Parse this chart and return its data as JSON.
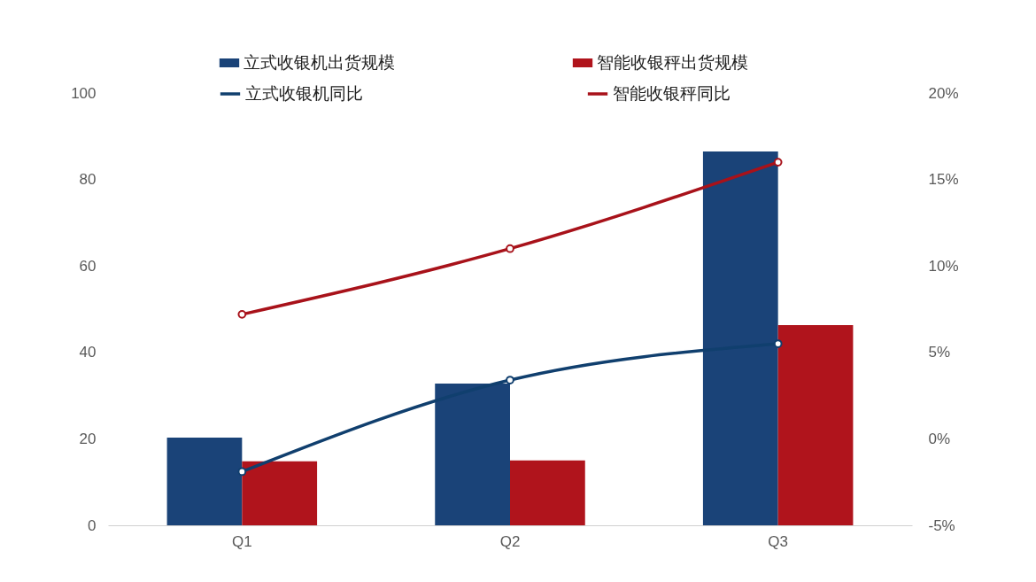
{
  "chart_data": {
    "type": "bar",
    "categories": [
      "Q1",
      "Q2",
      "Q3"
    ],
    "series": [
      {
        "name": "立式收银机出货规模",
        "color": "#1a4378",
        "values": [
          20.3,
          32.8,
          86.5
        ]
      },
      {
        "name": "智能收银秤出货规模",
        "color": "#b0141c",
        "values": [
          14.8,
          15.0,
          46.3
        ]
      },
      {
        "name": "立式收银机同比",
        "type": "line",
        "axis": "y2",
        "color": "#103f6e",
        "values": [
          -1.9,
          3.4,
          5.5
        ]
      },
      {
        "name": "智能收银秤同比",
        "type": "line",
        "axis": "y2",
        "color": "#a8121a",
        "values": [
          7.2,
          11.0,
          16.0
        ]
      }
    ],
    "ylim": [
      0,
      100
    ],
    "yticks": [
      0,
      20,
      40,
      60,
      80,
      100
    ],
    "y2lim": [
      -5,
      20
    ],
    "y2ticks": [
      {
        "value": -5,
        "label": "-5%"
      },
      {
        "value": 0,
        "label": "0%"
      },
      {
        "value": 5,
        "label": "5%"
      },
      {
        "value": 10,
        "label": "10%"
      },
      {
        "value": 15,
        "label": "15%"
      },
      {
        "value": 20,
        "label": "20%"
      }
    ],
    "grid": false,
    "legend": "top",
    "marker": "circle"
  }
}
